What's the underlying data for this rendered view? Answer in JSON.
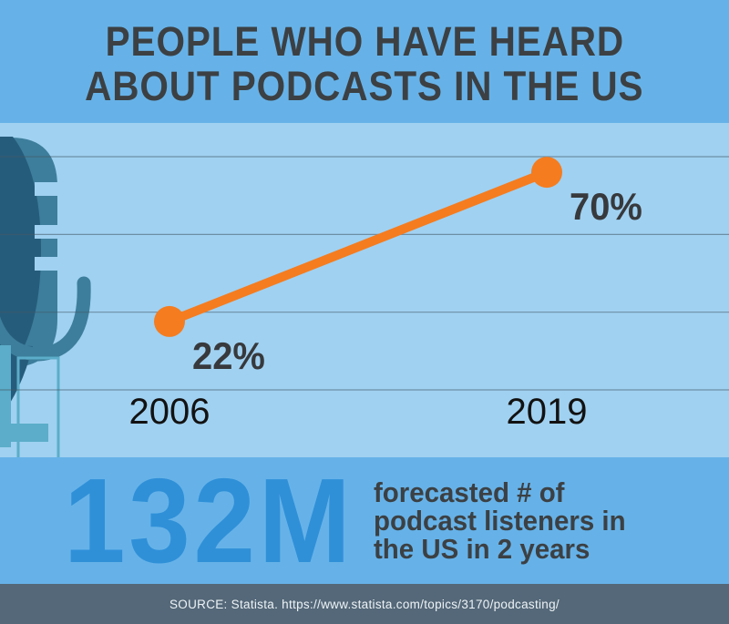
{
  "title": {
    "line1": "PEOPLE WHO HAVE HEARD",
    "line2": "ABOUT PODCASTS IN THE US"
  },
  "chart_data": {
    "type": "line",
    "title": "People who have heard about podcasts in the US",
    "categories": [
      "2006",
      "2019"
    ],
    "series": [
      {
        "name": "share of people who have heard about podcasts",
        "values": [
          22,
          70
        ]
      }
    ],
    "point_labels": [
      "22%",
      "70%"
    ],
    "unit": "%",
    "ylim": [
      0,
      75
    ],
    "gridline_percents": [
      0,
      25,
      50,
      75
    ],
    "grid": true,
    "legend": "none",
    "line_color": "#f57c1f"
  },
  "stat": {
    "value": "132M",
    "description_lines": [
      "forecasted # of",
      "podcast listeners in",
      "the US in 2 years"
    ]
  },
  "source": {
    "text": "SOURCE: Statista. https://www.statista.com/topics/3170/podcasting/"
  },
  "colors": {
    "header_bg": "#66b2e8",
    "chart_bg": "#a0d1f1",
    "accent_orange": "#f57c1f",
    "stat_blue": "#2f90d8",
    "source_bar_bg": "#546879",
    "dark_text": "#3c4043",
    "mic_dark": "#265c7b",
    "mic_mid": "#3d7e9c",
    "mic_light": "#5badc9"
  },
  "icons": {
    "microphone": "microphone-icon"
  }
}
